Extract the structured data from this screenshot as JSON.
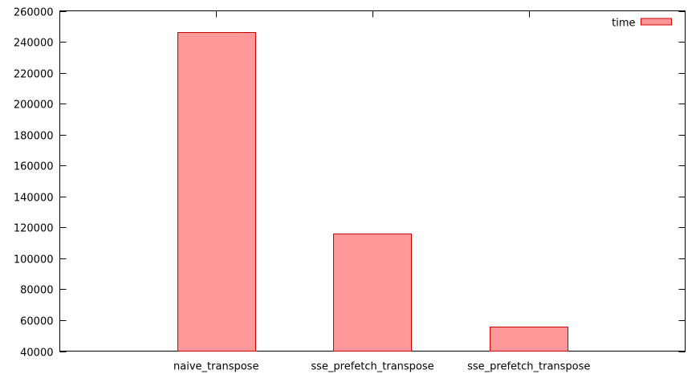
{
  "chart_data": {
    "type": "bar",
    "categories": [
      "naive_transpose",
      "sse_prefetch_transpose",
      "sse_prefetch_transpose"
    ],
    "series": [
      {
        "name": "time",
        "values": [
          246500,
          116000,
          56000
        ],
        "fill_color": "#ff9999",
        "stroke_color": "#cc0000"
      }
    ],
    "ylim": [
      40000,
      260000
    ],
    "yticks": [
      40000,
      60000,
      80000,
      100000,
      120000,
      140000,
      160000,
      180000,
      200000,
      220000,
      240000,
      260000
    ],
    "xlabel": "",
    "ylabel": "",
    "title": "",
    "grid": false,
    "legend_position": "top-right"
  }
}
